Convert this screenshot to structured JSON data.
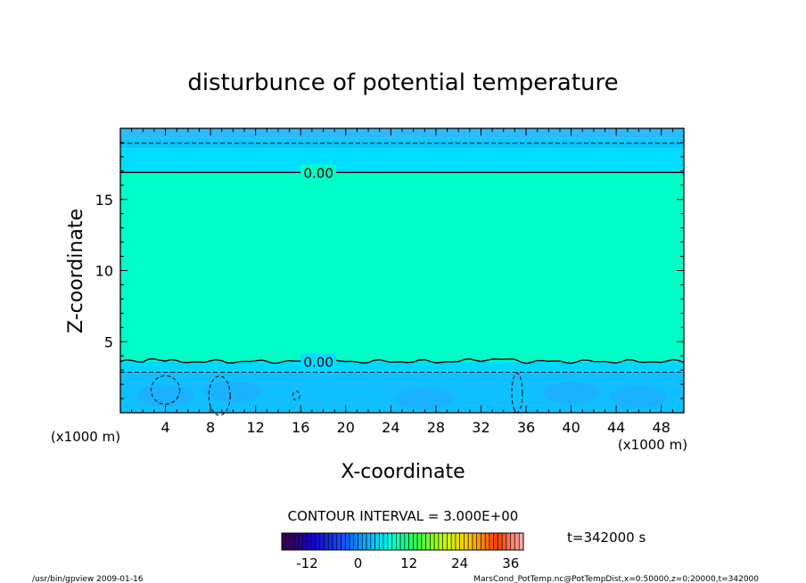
{
  "chart_data": {
    "type": "heatmap",
    "title": "disturbunce of potential temperature",
    "xlabel": "X-coordinate",
    "ylabel": "Z-coordinate",
    "x_unit": "(x1000 m)",
    "xlim": [
      0,
      50
    ],
    "ylim": [
      0,
      20
    ],
    "x_ticks": [
      "4",
      "8",
      "12",
      "16",
      "20",
      "24",
      "28",
      "32",
      "36",
      "40",
      "44",
      "48"
    ],
    "y_ticks": [
      "5",
      "10",
      "15"
    ],
    "contour_interval_label": "CONTOUR INTERVAL = 3.000E+00",
    "contour_labels": [
      {
        "text": "0.00",
        "x": 17.5,
        "z": 16.9
      },
      {
        "text": "0.00",
        "x": 17.5,
        "z": 3.6
      }
    ],
    "layers": [
      {
        "z0": 19.3,
        "z1": 20.0,
        "value": -3,
        "color": "#2fb9ff"
      },
      {
        "z0": 18.6,
        "z1": 19.3,
        "value": -2,
        "color": "#08c8ff"
      },
      {
        "z0": 16.9,
        "z1": 18.6,
        "value": -1,
        "color": "#00ddff"
      },
      {
        "z0": 3.6,
        "z1": 16.9,
        "value": 1,
        "color": "#00ffc8"
      },
      {
        "z0": 2.9,
        "z1": 3.6,
        "value": -1,
        "color": "#00d7ff"
      },
      {
        "z0": 0.0,
        "z1": 2.9,
        "value": -2,
        "color": "#10bfff"
      }
    ],
    "time_label": "t=342000 s",
    "colorbar": {
      "min": -18,
      "max": 39,
      "ticks": [
        "-12",
        "0",
        "12",
        "24",
        "36"
      ],
      "tick_values": [
        -12,
        0,
        12,
        24,
        36
      ]
    }
  },
  "footer": {
    "left": "/usr/bin/gpview   2009-01-16",
    "right": "MarsCond_PotTemp.nc@PotTempDist,x=0:50000,z=0:20000,t=342000"
  }
}
